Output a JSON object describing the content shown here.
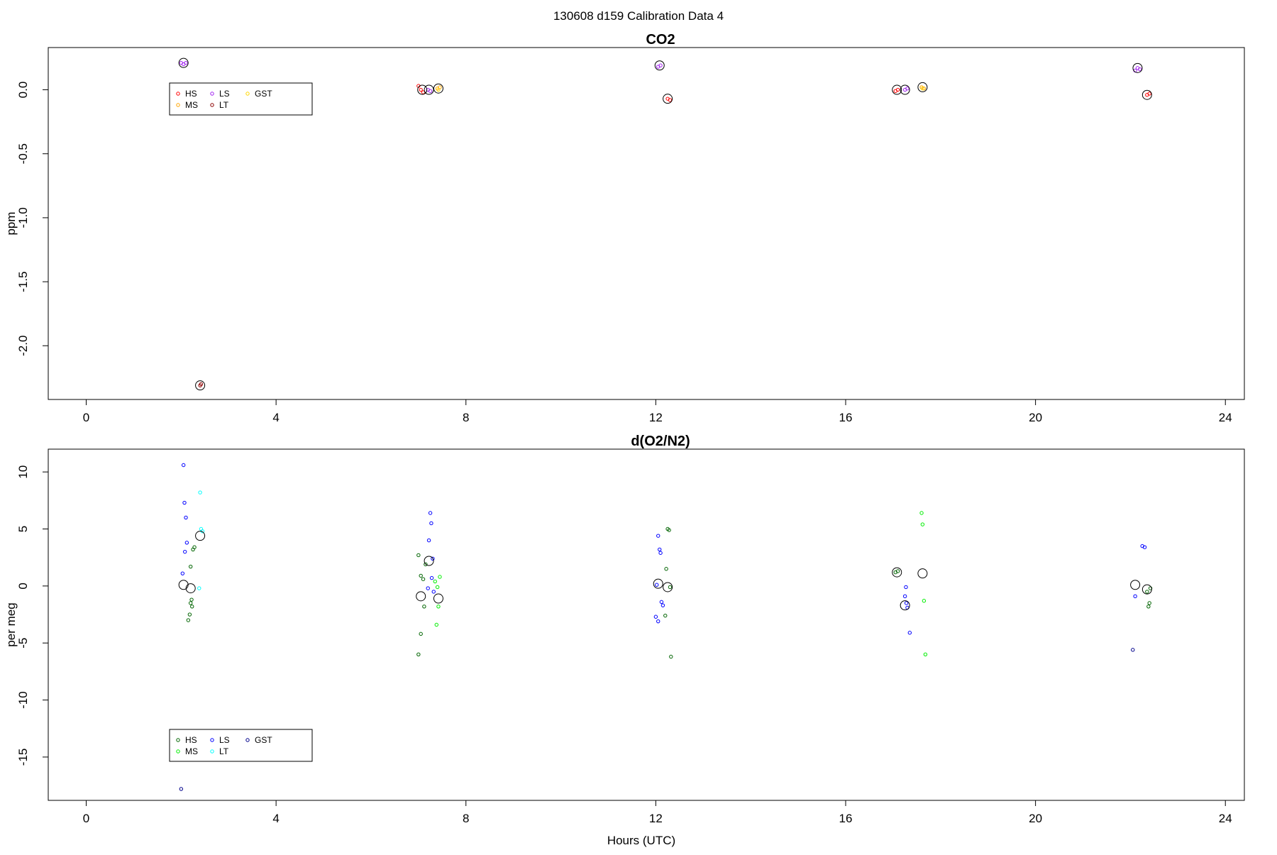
{
  "figure": {
    "title": "130608   d159   Calibration Data 4",
    "xlabel": "Hours (UTC)"
  },
  "chart_data": [
    {
      "type": "scatter",
      "title": "CO2",
      "xlabel": "",
      "ylabel": "ppm",
      "xlim": [
        -0.8,
        24.4
      ],
      "ylim": [
        -2.42,
        0.33
      ],
      "x_ticks": [
        "0",
        "4",
        "8",
        "12",
        "16",
        "20",
        "24"
      ],
      "y_ticks": [
        "0.0",
        "-0.5",
        "-1.0",
        "-1.5",
        "-2.0"
      ],
      "grid": false,
      "legend": {
        "placement": "top-left",
        "entries": [
          {
            "label": "HS",
            "color": "#ff0000"
          },
          {
            "label": "MS",
            "color": "#ffa500"
          },
          {
            "label": "LS",
            "color": "#a020f0"
          },
          {
            "label": "LT",
            "color": "#8b0000"
          },
          {
            "label": "GST",
            "color": "#ffd700"
          }
        ]
      },
      "series": [
        {
          "name": "HS",
          "color": "#ff0000",
          "x": [
            7.0,
            7.05,
            7.1,
            12.25,
            12.3,
            17.05,
            17.1,
            22.35,
            22.4
          ],
          "y": [
            0.03,
            0.0,
            -0.02,
            -0.07,
            -0.08,
            -0.01,
            0.0,
            -0.04,
            -0.03
          ]
        },
        {
          "name": "MS",
          "color": "#ffa500",
          "x": [
            7.4,
            7.45,
            17.6,
            17.65
          ],
          "y": [
            0.01,
            0.02,
            0.02,
            0.01
          ]
        },
        {
          "name": "LS",
          "color": "#a020f0",
          "x": [
            2.0,
            2.05,
            2.1,
            7.2,
            7.25,
            12.05,
            12.1,
            17.25,
            17.3,
            22.1,
            22.15,
            22.2
          ],
          "y": [
            0.21,
            0.2,
            0.21,
            0.0,
            -0.01,
            0.18,
            0.19,
            0.0,
            0.01,
            0.15,
            0.17,
            0.16
          ]
        },
        {
          "name": "LT",
          "color": "#8b0000",
          "x": [
            2.4,
            2.42
          ],
          "y": [
            -2.31,
            -2.3
          ]
        },
        {
          "name": "GST",
          "color": "#ffd700",
          "x": [
            7.42,
            17.62
          ],
          "y": [
            0.0,
            0.01
          ]
        }
      ],
      "means": {
        "x": [
          2.05,
          2.4,
          7.08,
          7.22,
          7.42,
          12.08,
          12.25,
          17.08,
          17.25,
          17.62,
          22.15,
          22.35
        ],
        "y": [
          0.21,
          -2.31,
          0.0,
          0.0,
          0.01,
          0.19,
          -0.07,
          0.0,
          0.0,
          0.02,
          0.17,
          -0.04
        ]
      }
    },
    {
      "type": "scatter",
      "title": "d(O2/N2)",
      "xlabel": "Hours (UTC)",
      "ylabel": "per meg",
      "xlim": [
        -0.8,
        24.4
      ],
      "ylim": [
        -18.8,
        12.0
      ],
      "x_ticks": [
        "0",
        "4",
        "8",
        "12",
        "16",
        "20",
        "24"
      ],
      "y_ticks": [
        "10",
        "5",
        "0",
        "-5",
        "-10",
        "-15"
      ],
      "grid": false,
      "legend": {
        "placement": "bottom-left",
        "entries": [
          {
            "label": "HS",
            "color": "#006400"
          },
          {
            "label": "MS",
            "color": "#00ee00"
          },
          {
            "label": "LS",
            "color": "#0000ff"
          },
          {
            "label": "LT",
            "color": "#00ffff"
          },
          {
            "label": "GST",
            "color": "#00008b"
          }
        ]
      },
      "series": [
        {
          "name": "HS",
          "color": "#006400",
          "x": [
            2.2,
            2.25,
            2.28,
            2.22,
            2.2,
            2.23,
            2.18,
            2.15,
            7.0,
            7.05,
            7.1,
            7.15,
            7.12,
            7.05,
            7.0,
            12.25,
            12.28,
            12.22,
            12.3,
            12.2,
            12.32,
            17.05,
            17.1,
            22.35,
            22.4,
            22.38,
            22.42
          ],
          "y": [
            1.7,
            3.2,
            3.4,
            -1.2,
            -1.5,
            -1.8,
            -2.5,
            -3.0,
            2.7,
            0.9,
            0.6,
            1.9,
            -1.8,
            -4.2,
            -6.0,
            5.0,
            4.9,
            1.5,
            -0.1,
            -2.6,
            -6.2,
            1.2,
            1.3,
            -0.5,
            -1.5,
            -1.8,
            -0.2
          ]
        },
        {
          "name": "MS",
          "color": "#00ee00",
          "x": [
            7.45,
            7.4,
            7.42,
            7.38,
            7.35,
            17.6,
            17.62,
            17.65,
            17.68
          ],
          "y": [
            0.8,
            -0.1,
            -1.8,
            -3.4,
            0.4,
            6.4,
            5.4,
            -1.3,
            -6.0
          ]
        },
        {
          "name": "LS",
          "color": "#0000ff",
          "x": [
            2.05,
            2.07,
            2.1,
            2.12,
            2.03,
            2.08,
            7.25,
            7.27,
            7.22,
            7.3,
            7.28,
            7.2,
            7.32,
            12.05,
            12.08,
            12.1,
            12.02,
            12.12,
            12.15,
            12.0,
            12.05,
            17.25,
            17.28,
            17.3,
            17.27,
            17.35,
            22.25,
            22.3,
            22.1
          ],
          "y": [
            10.6,
            7.3,
            6.0,
            3.8,
            1.1,
            3.0,
            6.4,
            5.5,
            4.0,
            2.4,
            0.7,
            -0.2,
            -0.5,
            4.4,
            3.2,
            2.9,
            0.1,
            -1.4,
            -1.7,
            -2.7,
            -3.1,
            -0.9,
            -1.5,
            -1.9,
            -0.1,
            -4.1,
            3.5,
            3.4,
            -0.9
          ]
        },
        {
          "name": "LT",
          "color": "#00ffff",
          "x": [
            2.4,
            2.42,
            2.45,
            2.38
          ],
          "y": [
            8.2,
            5.0,
            4.8,
            -0.2
          ]
        },
        {
          "name": "GST",
          "color": "#00008b",
          "x": [
            2.0,
            22.05
          ],
          "y": [
            -17.8,
            -5.6
          ]
        }
      ],
      "means": {
        "x": [
          2.05,
          2.2,
          2.4,
          7.05,
          7.22,
          7.42,
          12.05,
          12.25,
          17.08,
          17.25,
          17.62,
          22.1,
          22.35
        ],
        "y": [
          0.1,
          -0.2,
          4.4,
          -0.9,
          2.2,
          -1.1,
          0.2,
          -0.1,
          1.2,
          -1.7,
          1.1,
          0.1,
          -0.3
        ]
      }
    }
  ]
}
